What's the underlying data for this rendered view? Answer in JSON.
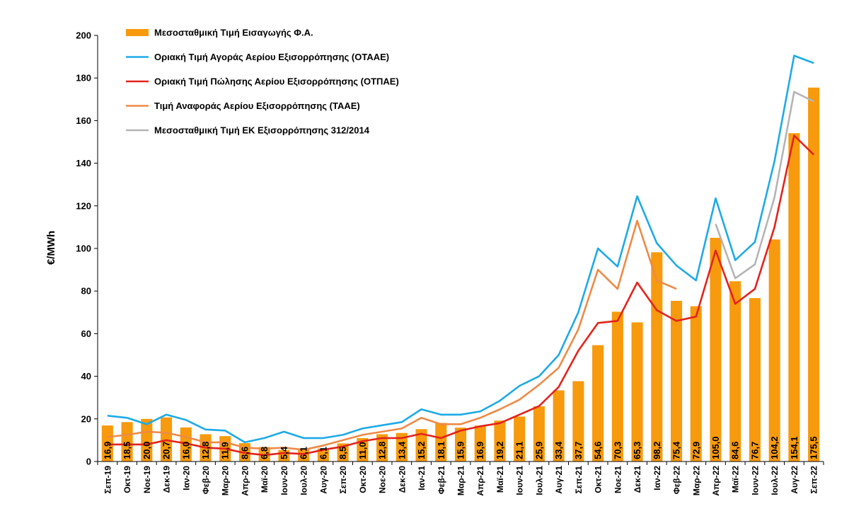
{
  "chart_data": {
    "type": "bar",
    "title": "",
    "xlabel": "",
    "ylabel": "€/MWh",
    "ylim": [
      0,
      200
    ],
    "yticks": [
      0,
      20,
      40,
      60,
      80,
      100,
      120,
      140,
      160,
      180,
      200
    ],
    "grid": false,
    "legend_position": "top-left",
    "categories": [
      "Σεπ-19",
      "Οκτ-19",
      "Νοε-19",
      "Δεκ-19",
      "Ιαν-20",
      "Φεβ-20",
      "Μαρ-20",
      "Απρ-20",
      "Μαϊ-20",
      "Ιουν-20",
      "Ιουλ-20",
      "Αυγ-20",
      "Σεπ-20",
      "Οκτ-20",
      "Νοε-20",
      "Δεκ-20",
      "Ιαν-21",
      "Φεβ-21",
      "Μαρ-21",
      "Απρ-21",
      "Μαϊ-21",
      "Ιουν-21",
      "Ιουλ-21",
      "Αυγ-21",
      "Σεπ-21",
      "Οκτ-21",
      "Νοε-21",
      "Δεκ-21",
      "Ιαν-22",
      "Φεβ-22",
      "Μαρ-22",
      "Απρ-22",
      "Μαϊ-22",
      "Ιουν-22",
      "Ιουλ-22",
      "Αυγ-22",
      "Σεπ-22"
    ],
    "series": [
      {
        "name": "Μεσοσταθμική Τιμή Εισαγωγής Φ.Α.",
        "kind": "bar",
        "color": "#F79A0D",
        "values": [
          16.9,
          18.5,
          20.0,
          20.7,
          16.0,
          12.8,
          11.9,
          8.6,
          6.8,
          5.4,
          6.1,
          6.1,
          8.5,
          11.0,
          12.8,
          13.4,
          15.2,
          18.1,
          15.9,
          16.9,
          19.2,
          21.1,
          25.9,
          33.4,
          37.7,
          54.6,
          70.3,
          65.3,
          98.2,
          75.4,
          72.9,
          105.0,
          84.6,
          76.7,
          104.2,
          154.1,
          175.5
        ],
        "labels": [
          "16,9",
          "18,5",
          "20,0",
          "20,7",
          "16,0",
          "12,8",
          "11,9",
          "8,6",
          "6,8",
          "5,4",
          "6,1",
          "6,1",
          "8,5",
          "11,0",
          "12,8",
          "13,4",
          "15,2",
          "18,1",
          "15,9",
          "16,9",
          "19,2",
          "21,1",
          "25,9",
          "33,4",
          "37,7",
          "54,6",
          "70,3",
          "65,3",
          "98,2",
          "75,4",
          "72,9",
          "105,0",
          "84,6",
          "76,7",
          "104,2",
          "154,1",
          "175,5"
        ]
      },
      {
        "name": "Οριακή Τιμή Αγοράς Αερίου Εξισορρόπησης  (ΟΤΑΑΕ)",
        "kind": "line",
        "color": "#1EAAE7",
        "values": [
          21.5,
          20.5,
          17.5,
          22.0,
          19.5,
          15.0,
          14.5,
          9.0,
          11.0,
          14.0,
          11.0,
          11.0,
          12.5,
          15.5,
          17.0,
          18.5,
          24.5,
          22.0,
          22.0,
          23.5,
          28.5,
          35.5,
          40.0,
          50.0,
          70.0,
          100.0,
          91.5,
          124.5,
          102.5,
          92.0,
          85.0,
          123.5,
          94.5,
          103.0,
          141.0,
          190.5,
          187.0
        ]
      },
      {
        "name": "Οριακή Τιμή Πώλησης Αερίου Εξισορρόπησης (ΟΤΠΑΕ)",
        "kind": "line",
        "color": "#E3231B",
        "values": [
          8.0,
          8.0,
          8.0,
          10.0,
          8.5,
          6.5,
          6.0,
          4.0,
          3.0,
          4.0,
          3.5,
          5.5,
          7.0,
          9.5,
          11.0,
          11.0,
          13.0,
          11.0,
          14.5,
          16.5,
          18.0,
          22.0,
          26.0,
          35.0,
          52.0,
          65.0,
          66.0,
          84.0,
          71.0,
          66.0,
          68.0,
          99.0,
          74.0,
          81.0,
          110.0,
          153.0,
          144.0
        ]
      },
      {
        "name": "Τιμή Αναφοράς Αερίου Εξισορρόπησης (ΤΑΑΕ)",
        "kind": "line",
        "color": "#EE8A46",
        "values": [
          11.5,
          12.5,
          14.0,
          13.5,
          11.5,
          9.0,
          9.0,
          6.5,
          6.0,
          6.5,
          5.5,
          7.5,
          10.0,
          12.5,
          14.0,
          15.5,
          20.5,
          17.5,
          17.5,
          20.5,
          24.5,
          29.0,
          36.0,
          44.0,
          62.0,
          90.0,
          81.0,
          113.0,
          85.0,
          81.0,
          null,
          null,
          null,
          null,
          null,
          null,
          null
        ]
      },
      {
        "name": "Μεσοσταθμική Τιμή ΕΚ Εξισορρόπησης 312/2014",
        "kind": "line",
        "color": "#B4B4B4",
        "values": [
          null,
          null,
          null,
          null,
          null,
          null,
          null,
          null,
          null,
          null,
          null,
          null,
          null,
          null,
          null,
          null,
          null,
          null,
          null,
          null,
          null,
          null,
          null,
          null,
          null,
          null,
          null,
          null,
          null,
          null,
          null,
          111.5,
          86.0,
          92.5,
          124.0,
          173.5,
          169.0
        ]
      }
    ]
  }
}
